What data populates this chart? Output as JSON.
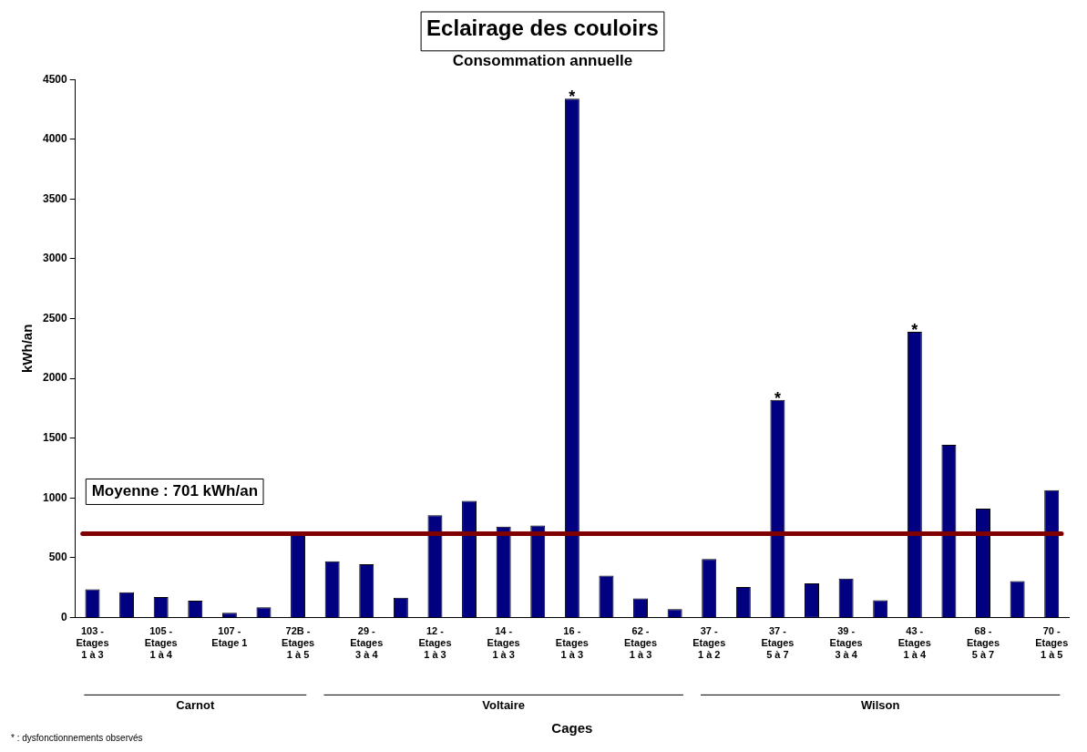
{
  "chart_data": {
    "type": "bar",
    "title": "Eclairage des couloirs",
    "subtitle": "Consommation annuelle",
    "xlabel": "Cages",
    "ylabel": "kWh/an",
    "categories": [
      "103 -\nEtages\n1 à 3",
      null,
      "105 -\nEtages\n1 à 4",
      null,
      "107 -\nEtage 1",
      null,
      "72B -\nEtages\n1 à 5",
      null,
      "29 -\nEtages\n3 à 4",
      null,
      "12 -\nEtages\n1 à 3",
      null,
      "14 -\nEtages\n1 à 3",
      null,
      "16 -\nEtages\n1 à 3",
      null,
      "62 -\nEtages\n1 à 3",
      null,
      "37 -\nEtages\n1 à 2",
      null,
      "37 -\nEtages\n5 à 7",
      null,
      "39 -\nEtages\n3 à 4",
      null,
      "43 -\nEtages\n1 à 4",
      null,
      "68 -\nEtages\n5 à 7",
      null,
      "70 -\nEtages\n1 à 5"
    ],
    "values": [
      235,
      210,
      170,
      140,
      40,
      85,
      700,
      470,
      445,
      165,
      855,
      975,
      760,
      770,
      4340,
      350,
      160,
      70,
      490,
      255,
      1820,
      285,
      325,
      145,
      2390,
      1445,
      910,
      305,
      1065
    ],
    "color": "#000080",
    "ylim": [
      0,
      4500
    ],
    "yticks": [
      0,
      500,
      1000,
      1500,
      2000,
      2500,
      3000,
      3500,
      4000,
      4500
    ],
    "grid": false,
    "legend": false,
    "ref_lines": [
      {
        "axis": "y",
        "value": 701,
        "label": "Moyenne : 701 kWh/an",
        "color": "#800000"
      }
    ],
    "annotations": [
      "* : dysfonctionnements observés",
      "Carnot",
      "Voltaire",
      "Wilson",
      {
        "text": "*",
        "x": "16 -\nEtages\n1 à 3",
        "y": 4340
      },
      {
        "text": "*",
        "x": "37 -\nEtages\n5 à 7",
        "y": 1820
      },
      {
        "text": "*",
        "x": "43 -\nEtages\n1 à 4",
        "y": 2390
      }
    ]
  }
}
